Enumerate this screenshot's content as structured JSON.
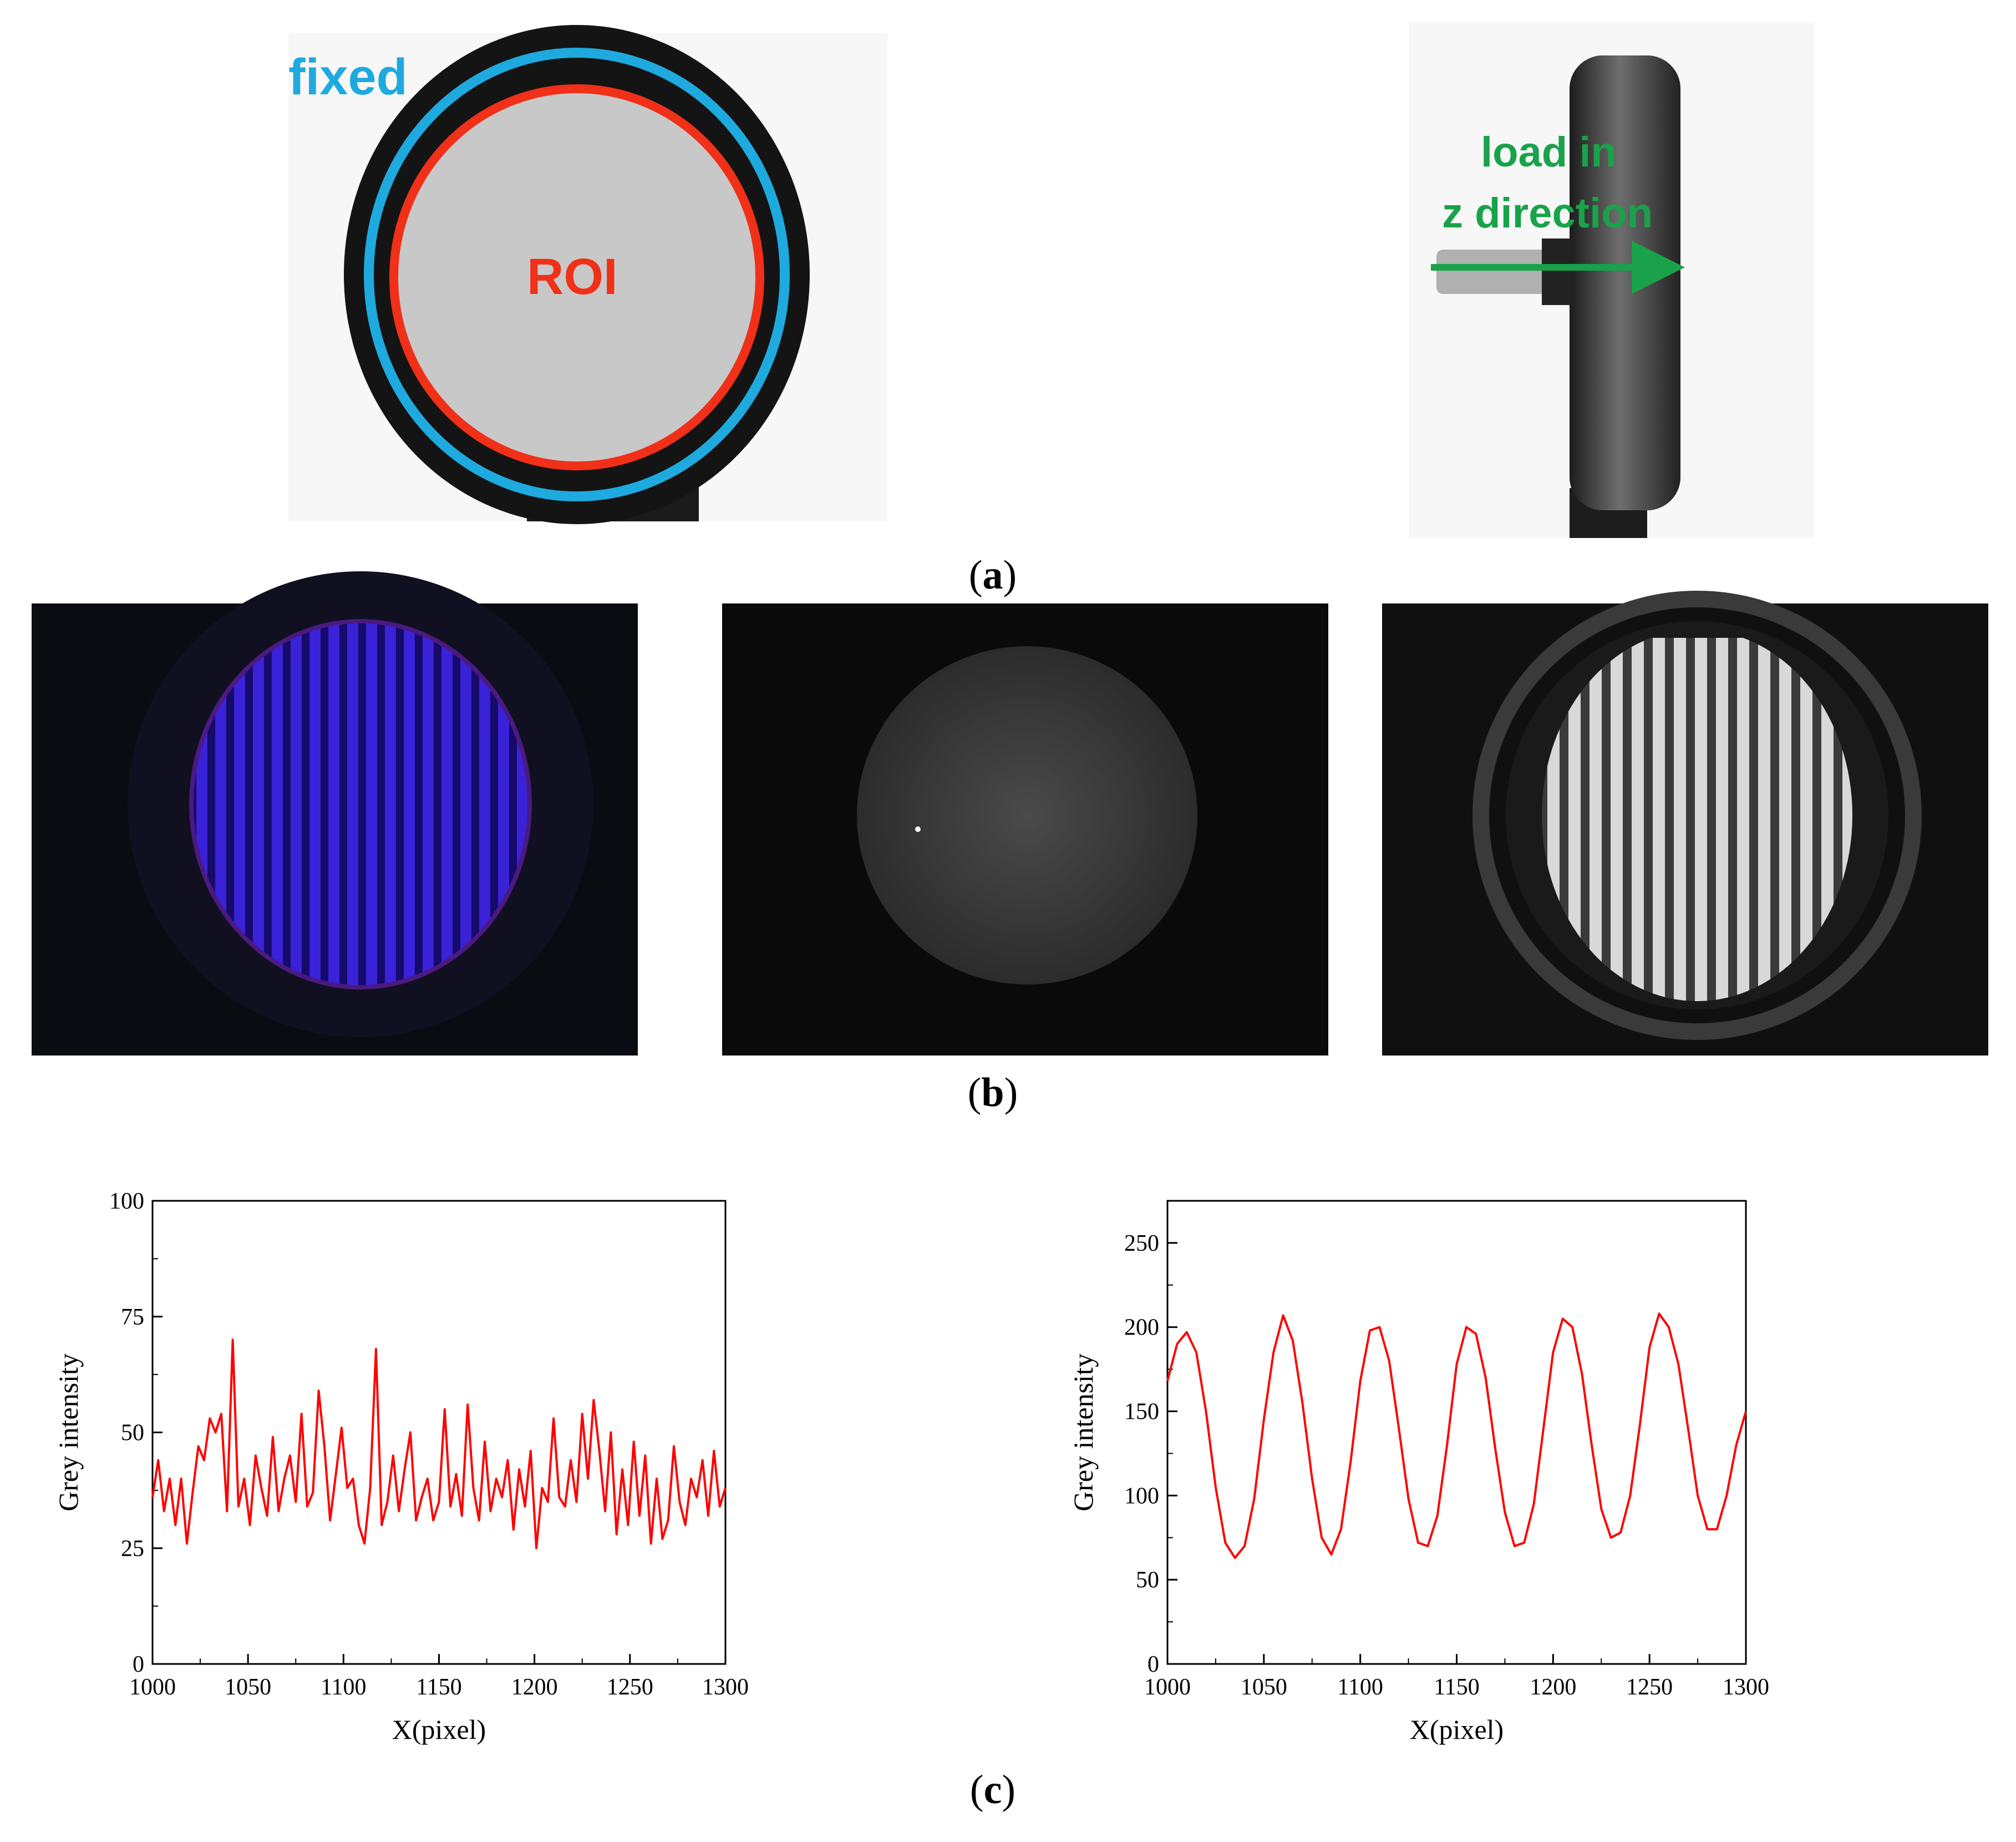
{
  "panel_a": {
    "fixed_label": "fixed",
    "roi_label": "ROI",
    "load_label_line1": "load in",
    "load_label_line2": "z direction",
    "caption_letter": "a"
  },
  "panel_b": {
    "caption_letter": "b"
  },
  "panel_c": {
    "caption_letter": "c"
  },
  "colors": {
    "fixed_ring": "#1eaadf",
    "roi_ring": "#f03018",
    "load_arrow": "#19a24a",
    "curve": "#ff0000"
  },
  "chart_data": [
    {
      "type": "line",
      "xlabel": "X(pixel)",
      "ylabel": "Grey intensity",
      "xlim": [
        1000,
        1300
      ],
      "ylim": [
        0,
        100
      ],
      "xticks": [
        "1000",
        "1050",
        "1100",
        "1150",
        "1200",
        "1250",
        "1300"
      ],
      "yticks": [
        "0",
        "25",
        "50",
        "75",
        "100"
      ],
      "series": [
        {
          "x": [
            1000,
            1003,
            1006,
            1009,
            1012,
            1015,
            1018,
            1021,
            1024,
            1027,
            1030,
            1033,
            1036,
            1039,
            1042,
            1045,
            1048,
            1051,
            1054,
            1057,
            1060,
            1063,
            1066,
            1069,
            1072,
            1075,
            1078,
            1081,
            1084,
            1087,
            1090,
            1093,
            1096,
            1099,
            1102,
            1105,
            1108,
            1111,
            1114,
            1117,
            1120,
            1123,
            1126,
            1129,
            1132,
            1135,
            1138,
            1141,
            1144,
            1147,
            1150,
            1153,
            1156,
            1159,
            1162,
            1165,
            1168,
            1171,
            1174,
            1177,
            1180,
            1183,
            1186,
            1189,
            1192,
            1195,
            1198,
            1201,
            1204,
            1207,
            1210,
            1213,
            1216,
            1219,
            1222,
            1225,
            1228,
            1231,
            1234,
            1237,
            1240,
            1243,
            1246,
            1249,
            1252,
            1255,
            1258,
            1261,
            1264,
            1267,
            1270,
            1273,
            1276,
            1279,
            1282,
            1285,
            1288,
            1291,
            1294,
            1297,
            1300
          ],
          "values": [
            36,
            44,
            33,
            40,
            30,
            40,
            26,
            37,
            47,
            44,
            53,
            50,
            54,
            33,
            70,
            34,
            40,
            30,
            45,
            38,
            32,
            49,
            33,
            40,
            45,
            35,
            54,
            34,
            37,
            59,
            47,
            31,
            41,
            51,
            38,
            40,
            30,
            26,
            38,
            68,
            30,
            35,
            45,
            33,
            42,
            50,
            31,
            36,
            40,
            31,
            35,
            55,
            34,
            41,
            32,
            56,
            38,
            31,
            48,
            33,
            40,
            36,
            44,
            29,
            42,
            34,
            46,
            25,
            38,
            35,
            53,
            36,
            34,
            44,
            35,
            54,
            40,
            57,
            46,
            33,
            50,
            28,
            42,
            30,
            48,
            32,
            45,
            26,
            40,
            27,
            31,
            47,
            35,
            30,
            40,
            36,
            44,
            32,
            46,
            34,
            38
          ]
        }
      ]
    },
    {
      "type": "line",
      "xlabel": "X(pixel)",
      "ylabel": "Grey intensity",
      "xlim": [
        1000,
        1300
      ],
      "ylim": [
        0,
        275
      ],
      "xticks": [
        "1000",
        "1050",
        "1100",
        "1150",
        "1200",
        "1250",
        "1300"
      ],
      "yticks": [
        "0",
        "50",
        "100",
        "150",
        "200",
        "250"
      ],
      "series": [
        {
          "x": [
            1000,
            1005,
            1010,
            1015,
            1020,
            1025,
            1030,
            1035,
            1040,
            1045,
            1050,
            1055,
            1060,
            1065,
            1070,
            1075,
            1080,
            1085,
            1090,
            1095,
            1100,
            1105,
            1110,
            1115,
            1120,
            1125,
            1130,
            1135,
            1140,
            1145,
            1150,
            1155,
            1160,
            1165,
            1170,
            1175,
            1180,
            1185,
            1190,
            1195,
            1200,
            1205,
            1210,
            1215,
            1220,
            1225,
            1230,
            1235,
            1240,
            1245,
            1250,
            1255,
            1260,
            1265,
            1270,
            1275,
            1280,
            1285,
            1290,
            1295,
            1300
          ],
          "values": [
            168,
            190,
            197,
            185,
            150,
            105,
            72,
            63,
            70,
            98,
            145,
            185,
            207,
            192,
            155,
            110,
            75,
            65,
            80,
            120,
            168,
            198,
            200,
            180,
            140,
            98,
            72,
            70,
            88,
            130,
            178,
            200,
            196,
            170,
            128,
            90,
            70,
            72,
            95,
            140,
            185,
            205,
            200,
            172,
            130,
            92,
            75,
            78,
            100,
            142,
            188,
            208,
            200,
            178,
            140,
            100,
            80,
            80,
            100,
            130,
            150
          ]
        }
      ]
    }
  ]
}
